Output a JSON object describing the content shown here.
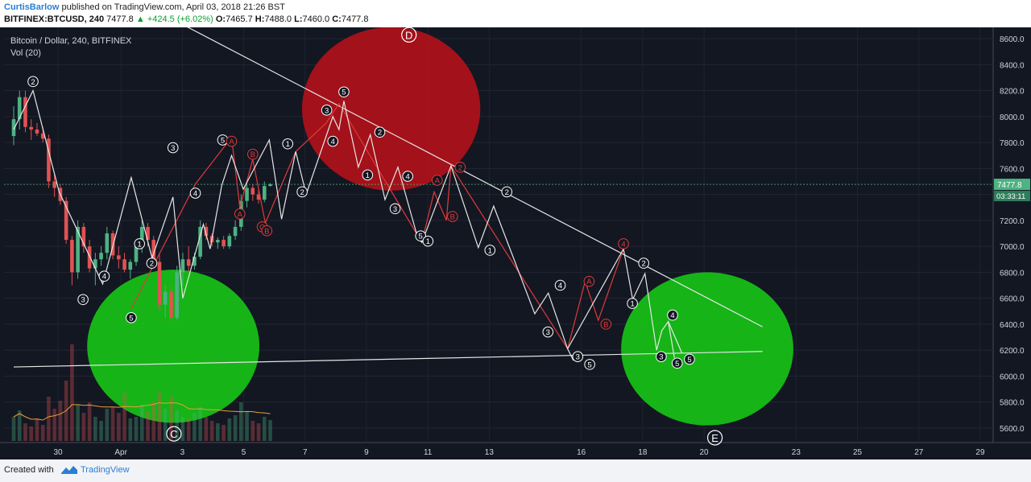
{
  "header": {
    "author": "CurtisBarlow",
    "published_text": "published on TradingView.com, April 03, 2018 21:26 BST",
    "symbol": "BITFINEX:BTCUSD, 240",
    "last": "7477.8",
    "change": "+424.5 (+6.02%)",
    "o_label": "O:",
    "o_value": "7465.7",
    "h_label": "H:",
    "h_value": "7488.0",
    "l_label": "L:",
    "l_value": "7460.0",
    "c_label": "C:",
    "c_value": "7477.8"
  },
  "footer": {
    "created_with": "Created with",
    "brand": "TradingView"
  },
  "chart_data": {
    "type": "candlestick",
    "title": "Bitcoin / Dollar, 240, BITFINEX",
    "indicator": "Vol (20)",
    "colors": {
      "background": "#131722",
      "up": "#4db382",
      "down": "#e05252",
      "white": "#e6e6e6",
      "red_wave": "#e03a3a",
      "green_zone": "#17c217",
      "red_zone": "#b0111a",
      "price_label": "#4db382",
      "vol_ma": "#e8a038"
    },
    "ylim": [
      5500,
      8700
    ],
    "y_ticks": [
      "8600.0",
      "8400.0",
      "8200.0",
      "8000.0",
      "7800.0",
      "7600.0",
      "7400.0",
      "7200.0",
      "7000.0",
      "6800.0",
      "6600.0",
      "6400.0",
      "6200.0",
      "6000.0",
      "5800.0",
      "5600.0"
    ],
    "x_ticks": [
      "30",
      "Apr",
      "3",
      "5",
      "7",
      "9",
      "11",
      "13",
      "16",
      "18",
      "20",
      "23",
      "25",
      "27",
      "29"
    ],
    "last_price_label": "7477.8",
    "countdown_label": "03:33:11",
    "candles": [
      {
        "o": 7850,
        "h": 8080,
        "l": 7780,
        "c": 7980
      },
      {
        "o": 7980,
        "h": 8200,
        "l": 7900,
        "c": 8150
      },
      {
        "o": 8150,
        "h": 8200,
        "l": 7880,
        "c": 7920
      },
      {
        "o": 7920,
        "h": 7980,
        "l": 7820,
        "c": 7900
      },
      {
        "o": 7900,
        "h": 7950,
        "l": 7850,
        "c": 7870
      },
      {
        "o": 7870,
        "h": 7920,
        "l": 7800,
        "c": 7830
      },
      {
        "o": 7830,
        "h": 7860,
        "l": 7450,
        "c": 7500
      },
      {
        "o": 7500,
        "h": 7560,
        "l": 7380,
        "c": 7450
      },
      {
        "o": 7450,
        "h": 7480,
        "l": 7320,
        "c": 7350
      },
      {
        "o": 7350,
        "h": 7380,
        "l": 7020,
        "c": 7050
      },
      {
        "o": 7050,
        "h": 7080,
        "l": 6700,
        "c": 6800
      },
      {
        "o": 6800,
        "h": 7200,
        "l": 6750,
        "c": 7150
      },
      {
        "o": 7150,
        "h": 7180,
        "l": 6950,
        "c": 7000
      },
      {
        "o": 7000,
        "h": 7050,
        "l": 6800,
        "c": 6830
      },
      {
        "o": 6830,
        "h": 6950,
        "l": 6700,
        "c": 6900
      },
      {
        "o": 6900,
        "h": 7000,
        "l": 6850,
        "c": 6950
      },
      {
        "o": 6950,
        "h": 7150,
        "l": 6900,
        "c": 7100
      },
      {
        "o": 7100,
        "h": 7120,
        "l": 6900,
        "c": 6930
      },
      {
        "o": 6930,
        "h": 7000,
        "l": 6830,
        "c": 6900
      },
      {
        "o": 6900,
        "h": 6950,
        "l": 6800,
        "c": 6820
      },
      {
        "o": 6820,
        "h": 6900,
        "l": 6750,
        "c": 6880
      },
      {
        "o": 6880,
        "h": 7050,
        "l": 6850,
        "c": 7000
      },
      {
        "o": 7000,
        "h": 7200,
        "l": 6950,
        "c": 7150
      },
      {
        "o": 7150,
        "h": 7180,
        "l": 7000,
        "c": 7050
      },
      {
        "o": 7050,
        "h": 7080,
        "l": 6850,
        "c": 6880
      },
      {
        "o": 6880,
        "h": 6950,
        "l": 6500,
        "c": 6550
      },
      {
        "o": 6550,
        "h": 6700,
        "l": 6450,
        "c": 6650
      },
      {
        "o": 6650,
        "h": 6700,
        "l": 6420,
        "c": 6450
      },
      {
        "o": 6450,
        "h": 6850,
        "l": 6430,
        "c": 6800
      },
      {
        "o": 6800,
        "h": 6950,
        "l": 6700,
        "c": 6900
      },
      {
        "o": 6900,
        "h": 7000,
        "l": 6800,
        "c": 6850
      },
      {
        "o": 6850,
        "h": 6950,
        "l": 6820,
        "c": 6920
      },
      {
        "o": 6920,
        "h": 7200,
        "l": 6900,
        "c": 7150
      },
      {
        "o": 7150,
        "h": 7180,
        "l": 7050,
        "c": 7080
      },
      {
        "o": 7080,
        "h": 7100,
        "l": 7000,
        "c": 7030
      },
      {
        "o": 7030,
        "h": 7070,
        "l": 6980,
        "c": 7050
      },
      {
        "o": 7050,
        "h": 7080,
        "l": 6980,
        "c": 7000
      },
      {
        "o": 7000,
        "h": 7100,
        "l": 6980,
        "c": 7080
      },
      {
        "o": 7080,
        "h": 7200,
        "l": 7050,
        "c": 7150
      },
      {
        "o": 7150,
        "h": 7400,
        "l": 7120,
        "c": 7350
      },
      {
        "o": 7350,
        "h": 7500,
        "l": 7300,
        "c": 7450
      },
      {
        "o": 7450,
        "h": 7480,
        "l": 7350,
        "c": 7400
      },
      {
        "o": 7400,
        "h": 7450,
        "l": 7330,
        "c": 7360
      },
      {
        "o": 7360,
        "h": 7500,
        "l": 7340,
        "c": 7465
      },
      {
        "o": 7465.7,
        "h": 7488,
        "l": 7460,
        "c": 7477.8
      }
    ],
    "volume": [
      30,
      38,
      22,
      18,
      28,
      20,
      55,
      40,
      50,
      75,
      120,
      45,
      35,
      48,
      30,
      25,
      40,
      42,
      35,
      60,
      28,
      30,
      45,
      36,
      50,
      62,
      40,
      55,
      38,
      30,
      28,
      35,
      42,
      30,
      25,
      22,
      20,
      28,
      32,
      48,
      36,
      25,
      22,
      30,
      26
    ],
    "white_waves": [
      {
        "x": 0,
        "y": 7900
      },
      {
        "x": 0.63,
        "y": 8200
      },
      {
        "x": 1.48,
        "y": 7420
      },
      {
        "x": 2.9,
        "y": 6710
      },
      {
        "x": 3.83,
        "y": 7530
      },
      {
        "x": 4.51,
        "y": 6910
      },
      {
        "x": 5.19,
        "y": 7380
      },
      {
        "x": 5.51,
        "y": 6600
      },
      {
        "x": 6.18,
        "y": 7170
      },
      {
        "x": 6.4,
        "y": 6980
      },
      {
        "x": 6.78,
        "y": 7470
      },
      {
        "x": 7.1,
        "y": 7700
      },
      {
        "x": 7.48,
        "y": 7440
      },
      {
        "x": 8.33,
        "y": 7820
      },
      {
        "x": 8.73,
        "y": 7210
      },
      {
        "x": 9.19,
        "y": 7730
      },
      {
        "x": 9.53,
        "y": 7400
      },
      {
        "x": 10.4,
        "y": 8000
      },
      {
        "x": 10.6,
        "y": 7900
      },
      {
        "x": 10.76,
        "y": 8120
      },
      {
        "x": 11.23,
        "y": 7610
      },
      {
        "x": 11.62,
        "y": 7860
      },
      {
        "x": 12.1,
        "y": 7360
      },
      {
        "x": 12.52,
        "y": 7610
      },
      {
        "x": 13.15,
        "y": 7080
      },
      {
        "x": 13.3,
        "y": 7030
      },
      {
        "x": 14.25,
        "y": 7620
      },
      {
        "x": 15.14,
        "y": 6990
      },
      {
        "x": 15.64,
        "y": 7310
      },
      {
        "x": 16.98,
        "y": 6480
      },
      {
        "x": 17.42,
        "y": 6640
      },
      {
        "x": 18.05,
        "y": 6210
      },
      {
        "x": 18.24,
        "y": 6120
      },
      {
        "x": 18.05,
        "y": 6210
      },
      {
        "x": 19.87,
        "y": 6980
      },
      {
        "x": 20.17,
        "y": 6590
      },
      {
        "x": 20.57,
        "y": 6790
      },
      {
        "x": 20.95,
        "y": 6200
      },
      {
        "x": 21.12,
        "y": 6350
      },
      {
        "x": 21.33,
        "y": 6420
      },
      {
        "x": 21.53,
        "y": 6140
      },
      {
        "x": 21.33,
        "y": 6420
      },
      {
        "x": 21.77,
        "y": 6180
      }
    ],
    "red_waves": [
      {
        "x": 3.83,
        "y": 6520
      },
      {
        "x": 5.92,
        "y": 7480
      },
      {
        "x": 7.1,
        "y": 7840
      },
      {
        "x": 7.37,
        "y": 7300
      },
      {
        "x": 7.79,
        "y": 7670
      },
      {
        "x": 8.2,
        "y": 7180
      },
      {
        "x": 9.19,
        "y": 7730
      },
      {
        "x": 10.18,
        "y": 7950
      },
      {
        "x": 10.6,
        "y": 8100
      },
      {
        "x": 13.3,
        "y": 7030
      },
      {
        "x": 13.7,
        "y": 7420
      },
      {
        "x": 14.1,
        "y": 7200
      },
      {
        "x": 14.25,
        "y": 7620
      },
      {
        "x": 18.05,
        "y": 6210
      },
      {
        "x": 18.62,
        "y": 6730
      },
      {
        "x": 19.05,
        "y": 6430
      },
      {
        "x": 19.87,
        "y": 6980
      }
    ],
    "trendlines": [
      {
        "x1": 5.5,
        "y1": 8710,
        "x2": 24.4,
        "y2": 6380
      },
      {
        "x1": 0,
        "y1": 6070,
        "x2": 24.4,
        "y2": 6190
      }
    ],
    "wave_labels": [
      {
        "t": "2",
        "x": 0.63,
        "y": 8270,
        "c": "white"
      },
      {
        "t": "3",
        "x": 2.26,
        "y": 6590,
        "c": "white"
      },
      {
        "t": "4",
        "x": 2.95,
        "y": 6770,
        "c": "white"
      },
      {
        "t": "5",
        "x": 3.83,
        "y": 6450,
        "c": "white"
      },
      {
        "t": "1",
        "x": 4.1,
        "y": 7020,
        "c": "white"
      },
      {
        "t": "2",
        "x": 4.5,
        "y": 6870,
        "c": "white"
      },
      {
        "t": "3",
        "x": 5.19,
        "y": 7760,
        "c": "white"
      },
      {
        "t": "4",
        "x": 5.92,
        "y": 7410,
        "c": "white"
      },
      {
        "t": "5",
        "x": 6.81,
        "y": 7820,
        "c": "white"
      },
      {
        "t": "A",
        "x": 7.1,
        "y": 7810,
        "c": "red"
      },
      {
        "t": "A",
        "x": 7.37,
        "y": 7250,
        "c": "red"
      },
      {
        "t": "B",
        "x": 7.79,
        "y": 7710,
        "c": "red"
      },
      {
        "t": "C",
        "x": 8.1,
        "y": 7150,
        "c": "red"
      },
      {
        "t": "B",
        "x": 8.25,
        "y": 7120,
        "c": "red"
      },
      {
        "t": "1",
        "x": 8.93,
        "y": 7790,
        "c": "white"
      },
      {
        "t": "2",
        "x": 9.4,
        "y": 7420,
        "c": "white"
      },
      {
        "t": "3",
        "x": 10.2,
        "y": 8050,
        "c": "white"
      },
      {
        "t": "4",
        "x": 10.4,
        "y": 7810,
        "c": "white"
      },
      {
        "t": "5",
        "x": 10.76,
        "y": 8190,
        "c": "white"
      },
      {
        "t": "1",
        "x": 11.53,
        "y": 7550,
        "c": "white"
      },
      {
        "t": "2",
        "x": 11.93,
        "y": 7880,
        "c": "white"
      },
      {
        "t": "3",
        "x": 12.43,
        "y": 7290,
        "c": "white"
      },
      {
        "t": "4",
        "x": 12.84,
        "y": 7540,
        "c": "white"
      },
      {
        "t": "5",
        "x": 13.26,
        "y": 7080,
        "c": "white"
      },
      {
        "t": "1",
        "x": 13.5,
        "y": 7040,
        "c": "white"
      },
      {
        "t": "A",
        "x": 13.8,
        "y": 7510,
        "c": "red"
      },
      {
        "t": "B",
        "x": 14.3,
        "y": 7230,
        "c": "red"
      },
      {
        "t": "2",
        "x": 14.55,
        "y": 7610,
        "c": "red"
      },
      {
        "t": "1",
        "x": 15.52,
        "y": 6970,
        "c": "white"
      },
      {
        "t": "2",
        "x": 16.07,
        "y": 7420,
        "c": "white"
      },
      {
        "t": "3",
        "x": 17.41,
        "y": 6340,
        "c": "white"
      },
      {
        "t": "4",
        "x": 17.81,
        "y": 6700,
        "c": "white"
      },
      {
        "t": "A",
        "x": 18.75,
        "y": 6730,
        "c": "red"
      },
      {
        "t": "3",
        "x": 18.38,
        "y": 6150,
        "c": "white"
      },
      {
        "t": "5",
        "x": 18.77,
        "y": 6090,
        "c": "white"
      },
      {
        "t": "B",
        "x": 19.3,
        "y": 6400,
        "c": "red"
      },
      {
        "t": "4",
        "x": 19.87,
        "y": 7020,
        "c": "red"
      },
      {
        "t": "1",
        "x": 20.16,
        "y": 6560,
        "c": "white"
      },
      {
        "t": "2",
        "x": 20.53,
        "y": 6870,
        "c": "white"
      },
      {
        "t": "3",
        "x": 21.1,
        "y": 6150,
        "c": "white"
      },
      {
        "t": "4",
        "x": 21.47,
        "y": 6470,
        "c": "white"
      },
      {
        "t": "5",
        "x": 21.62,
        "y": 6100,
        "c": "white"
      },
      {
        "t": "5",
        "x": 22.02,
        "y": 6130,
        "c": "white"
      }
    ],
    "big_labels": [
      {
        "t": "D",
        "x": 12.88,
        "y": 8630,
        "c": "white"
      },
      {
        "t": "C",
        "x": 5.22,
        "y": 5555,
        "c": "white"
      },
      {
        "t": "E",
        "x": 22.85,
        "y": 5525,
        "c": "white"
      }
    ],
    "zones": [
      {
        "color": "red",
        "cx": 12.3,
        "cy": 8060,
        "rx": 4.4,
        "ry": 630
      },
      {
        "color": "green",
        "cx": 5.2,
        "cy": 6230,
        "rx": 4.25,
        "ry": 590
      },
      {
        "color": "green",
        "cx": 22.6,
        "cy": 6210,
        "rx": 4.25,
        "ry": 590
      }
    ]
  }
}
